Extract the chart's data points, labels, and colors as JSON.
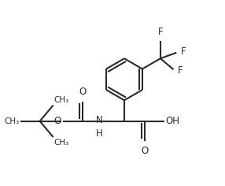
{
  "bg_color": "#ffffff",
  "line_color": "#2a2a2a",
  "line_width": 1.5,
  "font_size": 8.5,
  "figsize": [
    2.86,
    2.36
  ],
  "dpi": 100,
  "xlim": [
    -0.05,
    1.05
  ],
  "ylim": [
    0.02,
    1.02
  ]
}
